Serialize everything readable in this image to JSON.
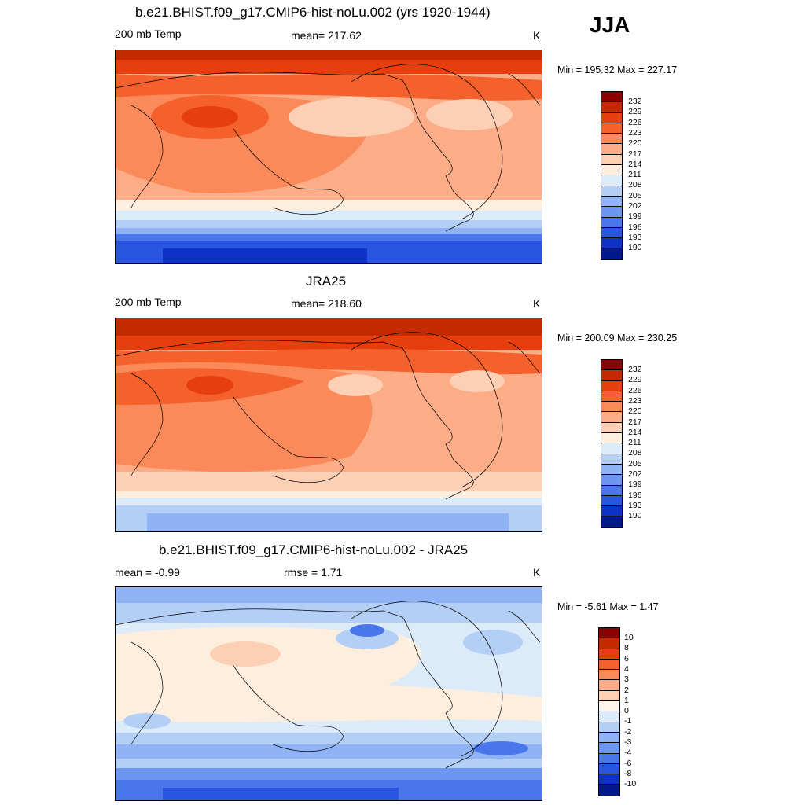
{
  "season": "JJA",
  "panels": [
    {
      "title": "b.e21.BHIST.f09_g17.CMIP6-hist-noLu.002 (yrs 1920-1944)",
      "left_label": "200 mb Temp",
      "center_label": "mean= 217.62",
      "units": "K",
      "minmax": "Min = 195.32 Max = 227.17",
      "colorbar_labels": [
        "232",
        "229",
        "226",
        "223",
        "220",
        "217",
        "214",
        "211",
        "208",
        "205",
        "202",
        "199",
        "196",
        "193",
        "190"
      ],
      "colorbar_colors": [
        "#8b0000",
        "#c42a00",
        "#e63e0c",
        "#f5612c",
        "#fb8a5a",
        "#fcac86",
        "#fdd0b6",
        "#fdeedd",
        "#dcebfa",
        "#b4cff5",
        "#8fb3f5",
        "#6c96f0",
        "#4a76ec",
        "#2a55e0",
        "#0e32c8",
        "#001a8c"
      ]
    },
    {
      "title": "JRA25",
      "left_label": "200 mb Temp",
      "center_label": "mean= 218.60",
      "units": "K",
      "minmax": "Min = 200.09 Max = 230.25",
      "colorbar_labels": [
        "232",
        "229",
        "226",
        "223",
        "220",
        "217",
        "214",
        "211",
        "208",
        "205",
        "202",
        "199",
        "196",
        "193",
        "190"
      ],
      "colorbar_colors": [
        "#8b0000",
        "#c42a00",
        "#e63e0c",
        "#f5612c",
        "#fb8a5a",
        "#fcac86",
        "#fdd0b6",
        "#fdeedd",
        "#dcebfa",
        "#b4cff5",
        "#8fb3f5",
        "#6c96f0",
        "#4a76ec",
        "#2a55e0",
        "#0e32c8",
        "#001a8c"
      ]
    },
    {
      "title": "b.e21.BHIST.f09_g17.CMIP6-hist-noLu.002 - JRA25",
      "left_label": "mean =  -0.99",
      "center_label": "rmse =   1.71",
      "units": "K",
      "minmax": "Min =  -5.61 Max =   1.47",
      "colorbar_labels": [
        "10",
        "8",
        "6",
        "4",
        "3",
        "2",
        "1",
        "0",
        "-1",
        "-2",
        "-3",
        "-4",
        "-6",
        "-8",
        "-10"
      ],
      "colorbar_colors": [
        "#8b0000",
        "#c42a00",
        "#e63e0c",
        "#f5612c",
        "#fb8a5a",
        "#fcac86",
        "#fdd0b6",
        "#fdf5ee",
        "#dcebfa",
        "#b4cff5",
        "#8fb3f5",
        "#6c96f0",
        "#4a76ec",
        "#2a55e0",
        "#0e32c8",
        "#001a8c"
      ]
    }
  ]
}
